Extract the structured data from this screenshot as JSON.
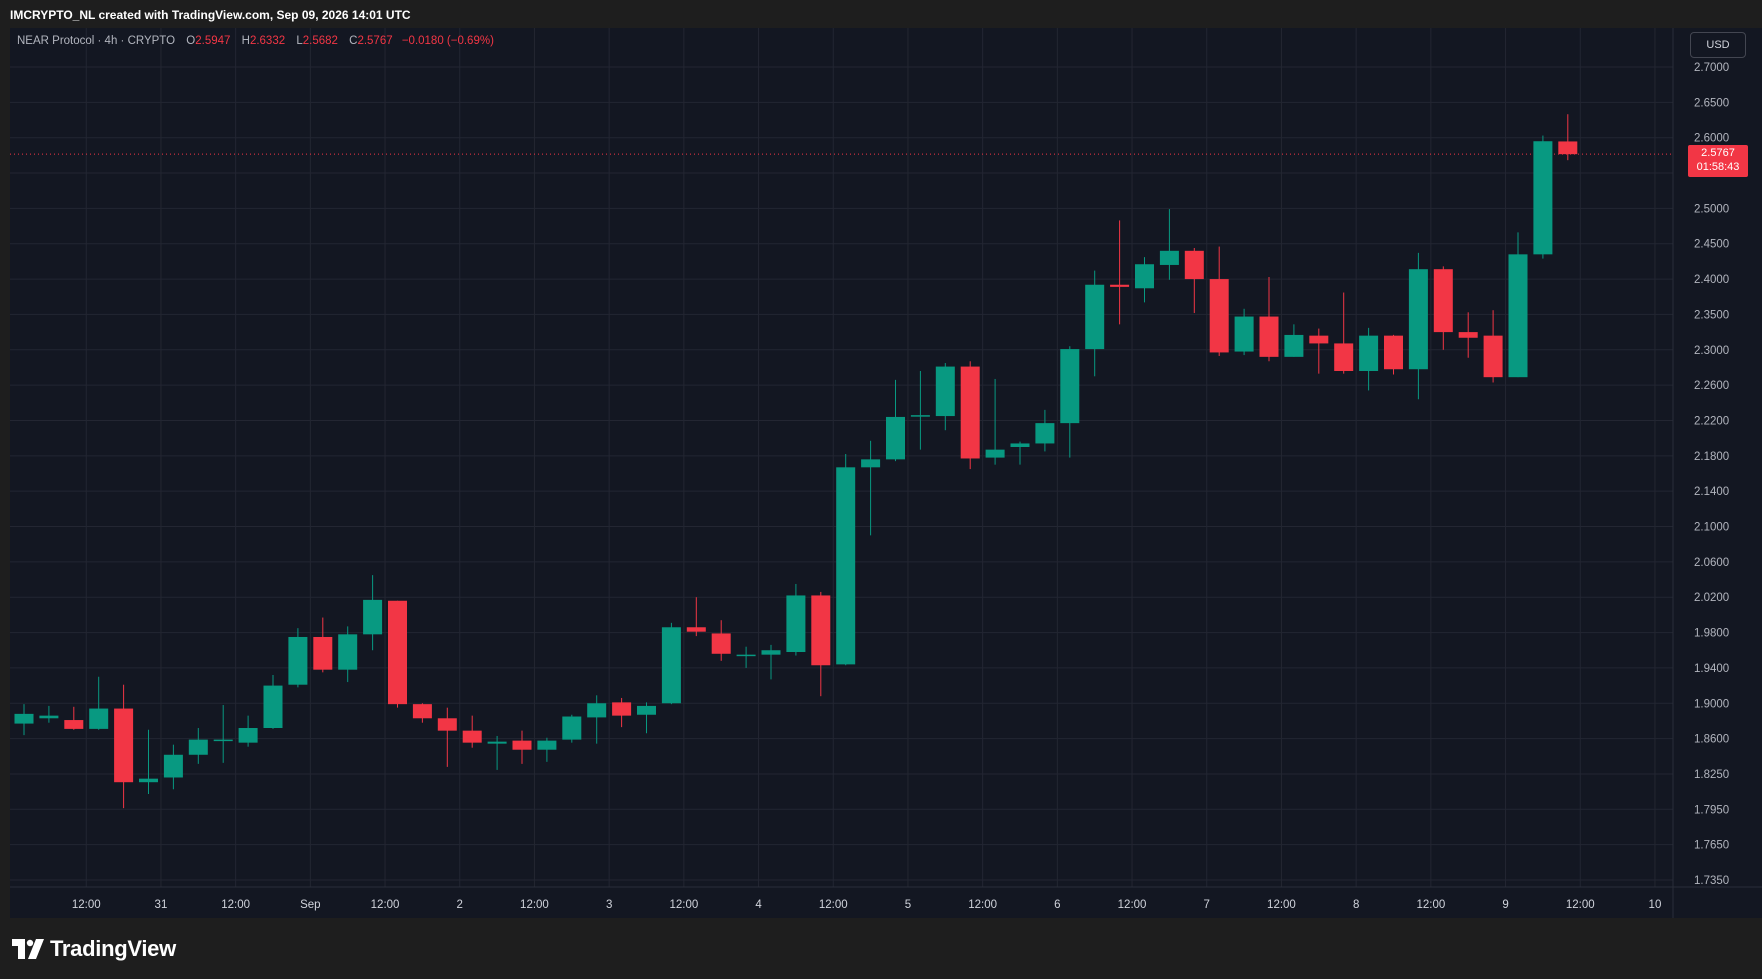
{
  "header": {
    "attribution": "IMCRYPTO_NL created with TradingView.com, Sep 09, 2026 14:01 UTC"
  },
  "legend": {
    "symbol": "NEAR Protocol · 4h · CRYPTO",
    "open_label": "O",
    "open": "2.5947",
    "high_label": "H",
    "high": "2.6332",
    "low_label": "L",
    "low": "2.5682",
    "close_label": "C",
    "close": "2.5767",
    "change": "−0.0180 (−0.69%)"
  },
  "currency": "USD",
  "last_price": {
    "price": "2.5767",
    "countdown": "01:58:43"
  },
  "brand": {
    "name": "TradingView"
  },
  "colors": {
    "up": "#089981",
    "down": "#f23645",
    "background": "#131722",
    "grid": "#232632"
  },
  "chart_data": {
    "type": "candlestick",
    "title": "NEAR Protocol · 4h · CRYPTO",
    "xlabel": "",
    "ylabel": "",
    "ylim": [
      1.715,
      2.73
    ],
    "y_ticks": [
      "2.7000",
      "2.6500",
      "2.6000",
      "2.5500",
      "2.5000",
      "2.4500",
      "2.4000",
      "2.3500",
      "2.3000",
      "2.2600",
      "2.2200",
      "2.1800",
      "2.1400",
      "2.1000",
      "2.0600",
      "2.0200",
      "1.9800",
      "1.9400",
      "1.9000",
      "1.8600",
      "1.8250",
      "1.7950",
      "1.7650",
      "1.7350"
    ],
    "x_ticks": [
      {
        "label": "12:00",
        "index": 2.5
      },
      {
        "label": "31",
        "index": 5.5
      },
      {
        "label": "12:00",
        "index": 8.5
      },
      {
        "label": "Sep",
        "index": 11.5
      },
      {
        "label": "12:00",
        "index": 14.5
      },
      {
        "label": "2",
        "index": 17.5
      },
      {
        "label": "12:00",
        "index": 20.5
      },
      {
        "label": "3",
        "index": 23.5
      },
      {
        "label": "12:00",
        "index": 26.5
      },
      {
        "label": "4",
        "index": 29.5
      },
      {
        "label": "12:00",
        "index": 32.5
      },
      {
        "label": "5",
        "index": 35.5
      },
      {
        "label": "12:00",
        "index": 38.5
      },
      {
        "label": "6",
        "index": 41.5
      },
      {
        "label": "12:00",
        "index": 44.5
      },
      {
        "label": "7",
        "index": 47.5
      },
      {
        "label": "12:00",
        "index": 50.5
      },
      {
        "label": "8",
        "index": 53.5
      },
      {
        "label": "12:00",
        "index": 56.5
      },
      {
        "label": "9",
        "index": 59.5
      },
      {
        "label": "12:00",
        "index": 62.5
      },
      {
        "label": "10",
        "index": 65.5
      }
    ],
    "candles": [
      {
        "o": 1.877,
        "h": 1.899,
        "l": 1.864,
        "c": 1.888
      },
      {
        "o": 1.883,
        "h": 1.897,
        "l": 1.878,
        "c": 1.886
      },
      {
        "o": 1.881,
        "h": 1.896,
        "l": 1.87,
        "c": 1.871
      },
      {
        "o": 1.871,
        "h": 1.93,
        "l": 1.87,
        "c": 1.894
      },
      {
        "o": 1.894,
        "h": 1.921,
        "l": 1.796,
        "c": 1.818
      },
      {
        "o": 1.818,
        "h": 1.87,
        "l": 1.808,
        "c": 1.821
      },
      {
        "o": 1.822,
        "h": 1.854,
        "l": 1.812,
        "c": 1.844
      },
      {
        "o": 1.844,
        "h": 1.872,
        "l": 1.835,
        "c": 1.859
      },
      {
        "o": 1.858,
        "h": 1.898,
        "l": 1.836,
        "c": 1.859
      },
      {
        "o": 1.856,
        "h": 1.886,
        "l": 1.852,
        "c": 1.872
      },
      {
        "o": 1.872,
        "h": 1.932,
        "l": 1.871,
        "c": 1.92
      },
      {
        "o": 1.921,
        "h": 1.985,
        "l": 1.918,
        "c": 1.975
      },
      {
        "o": 1.975,
        "h": 1.997,
        "l": 1.935,
        "c": 1.938
      },
      {
        "o": 1.938,
        "h": 1.987,
        "l": 1.924,
        "c": 1.978
      },
      {
        "o": 1.978,
        "h": 2.045,
        "l": 1.96,
        "c": 2.017
      },
      {
        "o": 2.016,
        "h": 2.016,
        "l": 1.895,
        "c": 1.899
      },
      {
        "o": 1.899,
        "h": 1.9,
        "l": 1.878,
        "c": 1.883
      },
      {
        "o": 1.883,
        "h": 1.895,
        "l": 1.832,
        "c": 1.869
      },
      {
        "o": 1.869,
        "h": 1.886,
        "l": 1.851,
        "c": 1.856
      },
      {
        "o": 1.855,
        "h": 1.863,
        "l": 1.829,
        "c": 1.857
      },
      {
        "o": 1.858,
        "h": 1.869,
        "l": 1.835,
        "c": 1.849
      },
      {
        "o": 1.849,
        "h": 1.861,
        "l": 1.837,
        "c": 1.858
      },
      {
        "o": 1.859,
        "h": 1.887,
        "l": 1.856,
        "c": 1.885
      },
      {
        "o": 1.884,
        "h": 1.909,
        "l": 1.855,
        "c": 1.9
      },
      {
        "o": 1.901,
        "h": 1.906,
        "l": 1.873,
        "c": 1.886
      },
      {
        "o": 1.887,
        "h": 1.901,
        "l": 1.866,
        "c": 1.897
      },
      {
        "o": 1.9,
        "h": 1.991,
        "l": 1.899,
        "c": 1.986
      },
      {
        "o": 1.986,
        "h": 2.02,
        "l": 1.976,
        "c": 1.981
      },
      {
        "o": 1.979,
        "h": 1.994,
        "l": 1.948,
        "c": 1.956
      },
      {
        "o": 1.954,
        "h": 1.964,
        "l": 1.94,
        "c": 1.955
      },
      {
        "o": 1.955,
        "h": 1.966,
        "l": 1.927,
        "c": 1.96
      },
      {
        "o": 1.958,
        "h": 2.035,
        "l": 1.954,
        "c": 2.022
      },
      {
        "o": 2.022,
        "h": 2.026,
        "l": 1.908,
        "c": 1.943
      },
      {
        "o": 1.944,
        "h": 2.182,
        "l": 1.943,
        "c": 2.167
      },
      {
        "o": 2.167,
        "h": 2.197,
        "l": 2.09,
        "c": 2.176
      },
      {
        "o": 2.176,
        "h": 2.266,
        "l": 2.174,
        "c": 2.224
      },
      {
        "o": 2.225,
        "h": 2.276,
        "l": 2.187,
        "c": 2.226
      },
      {
        "o": 2.225,
        "h": 2.285,
        "l": 2.209,
        "c": 2.281
      },
      {
        "o": 2.281,
        "h": 2.287,
        "l": 2.165,
        "c": 2.177
      },
      {
        "o": 2.178,
        "h": 2.267,
        "l": 2.17,
        "c": 2.187
      },
      {
        "o": 2.19,
        "h": 2.196,
        "l": 2.17,
        "c": 2.194
      },
      {
        "o": 2.194,
        "h": 2.232,
        "l": 2.185,
        "c": 2.217
      },
      {
        "o": 2.217,
        "h": 2.305,
        "l": 2.178,
        "c": 2.301
      },
      {
        "o": 2.301,
        "h": 2.412,
        "l": 2.27,
        "c": 2.392
      },
      {
        "o": 2.392,
        "h": 2.483,
        "l": 2.336,
        "c": 2.389
      },
      {
        "o": 2.387,
        "h": 2.431,
        "l": 2.367,
        "c": 2.421
      },
      {
        "o": 2.42,
        "h": 2.499,
        "l": 2.399,
        "c": 2.44
      },
      {
        "o": 2.44,
        "h": 2.444,
        "l": 2.352,
        "c": 2.4
      },
      {
        "o": 2.4,
        "h": 2.446,
        "l": 2.293,
        "c": 2.297
      },
      {
        "o": 2.298,
        "h": 2.358,
        "l": 2.294,
        "c": 2.347
      },
      {
        "o": 2.347,
        "h": 2.403,
        "l": 2.287,
        "c": 2.292
      },
      {
        "o": 2.292,
        "h": 2.336,
        "l": 2.292,
        "c": 2.321
      },
      {
        "o": 2.32,
        "h": 2.33,
        "l": 2.273,
        "c": 2.309
      },
      {
        "o": 2.309,
        "h": 2.381,
        "l": 2.273,
        "c": 2.276
      },
      {
        "o": 2.276,
        "h": 2.331,
        "l": 2.254,
        "c": 2.32
      },
      {
        "o": 2.32,
        "h": 2.321,
        "l": 2.272,
        "c": 2.278
      },
      {
        "o": 2.278,
        "h": 2.437,
        "l": 2.244,
        "c": 2.414
      },
      {
        "o": 2.414,
        "h": 2.418,
        "l": 2.3,
        "c": 2.325
      },
      {
        "o": 2.325,
        "h": 2.353,
        "l": 2.291,
        "c": 2.317
      },
      {
        "o": 2.32,
        "h": 2.356,
        "l": 2.263,
        "c": 2.269
      },
      {
        "o": 2.269,
        "h": 2.466,
        "l": 2.269,
        "c": 2.435
      },
      {
        "o": 2.435,
        "h": 2.603,
        "l": 2.429,
        "c": 2.595
      },
      {
        "o": 2.5947,
        "h": 2.6332,
        "l": 2.5682,
        "c": 2.5767
      }
    ]
  }
}
